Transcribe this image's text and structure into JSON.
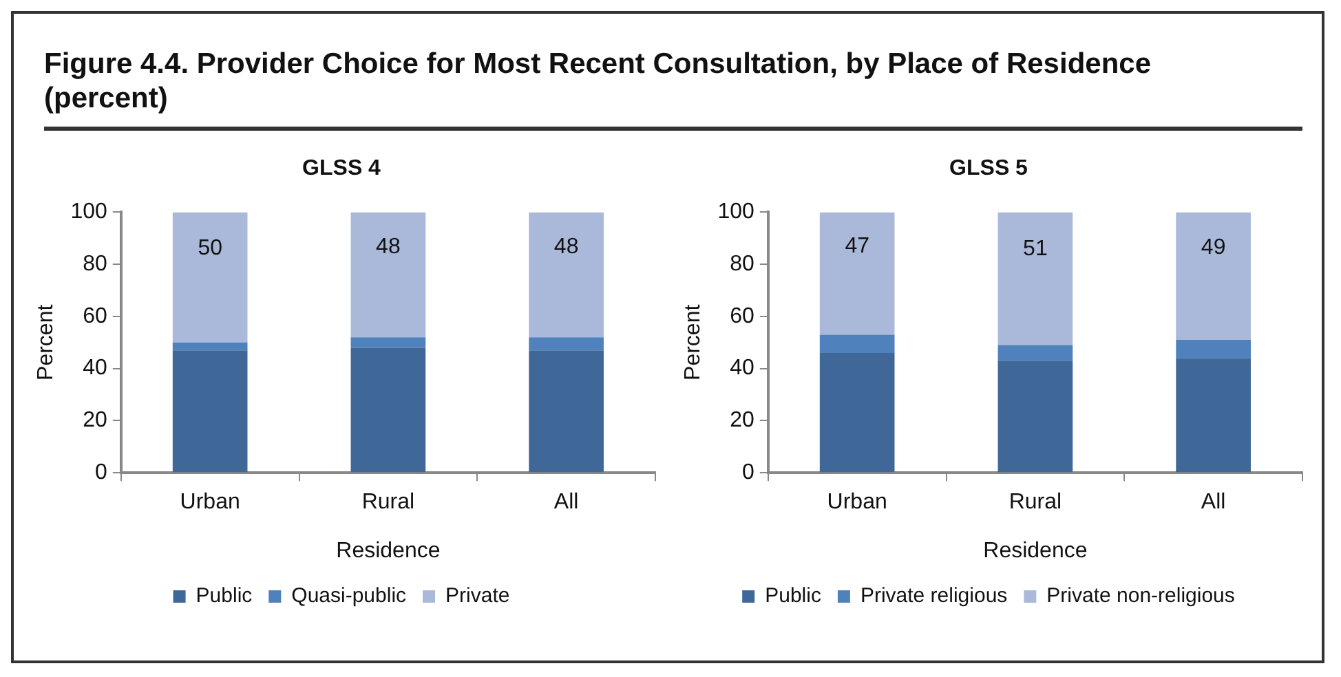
{
  "chart_data": [
    {
      "type": "bar",
      "title": "Figure 4.4. Provider Choice for Most Recent Consultation, by Place of Residence (percent)",
      "subtitle": "GLSS 4",
      "xlabel": "Residence",
      "ylabel": "Percent",
      "categories": [
        "Urban",
        "Rural",
        "All"
      ],
      "stacked": true,
      "ylim": [
        0,
        100
      ],
      "yticks": [
        0,
        20,
        40,
        60,
        80,
        100
      ],
      "legend": "bottom",
      "series": [
        {
          "name": "Public",
          "color": "#3f6899",
          "values": [
            47,
            48,
            47
          ]
        },
        {
          "name": "Quasi-public",
          "color": "#4f81bd",
          "values": [
            3,
            4,
            5
          ]
        },
        {
          "name": "Private",
          "color": "#aab9d9",
          "values": [
            50,
            48,
            48
          ],
          "value_labels": [
            "50",
            "48",
            "48"
          ]
        }
      ]
    },
    {
      "type": "bar",
      "subtitle": "GLSS 5",
      "xlabel": "Residence",
      "ylabel": "Percent",
      "categories": [
        "Urban",
        "Rural",
        "All"
      ],
      "stacked": true,
      "ylim": [
        0,
        100
      ],
      "yticks": [
        0,
        20,
        40,
        60,
        80,
        100
      ],
      "legend": "bottom",
      "series": [
        {
          "name": "Public",
          "color": "#3f6899",
          "values": [
            46,
            43,
            44
          ]
        },
        {
          "name": "Private religious",
          "color": "#4f81bd",
          "values": [
            7,
            6,
            7
          ]
        },
        {
          "name": "Private non-religious",
          "color": "#aab9d9",
          "values": [
            47,
            51,
            49
          ],
          "value_labels": [
            "47",
            "51",
            "49"
          ]
        }
      ]
    }
  ]
}
